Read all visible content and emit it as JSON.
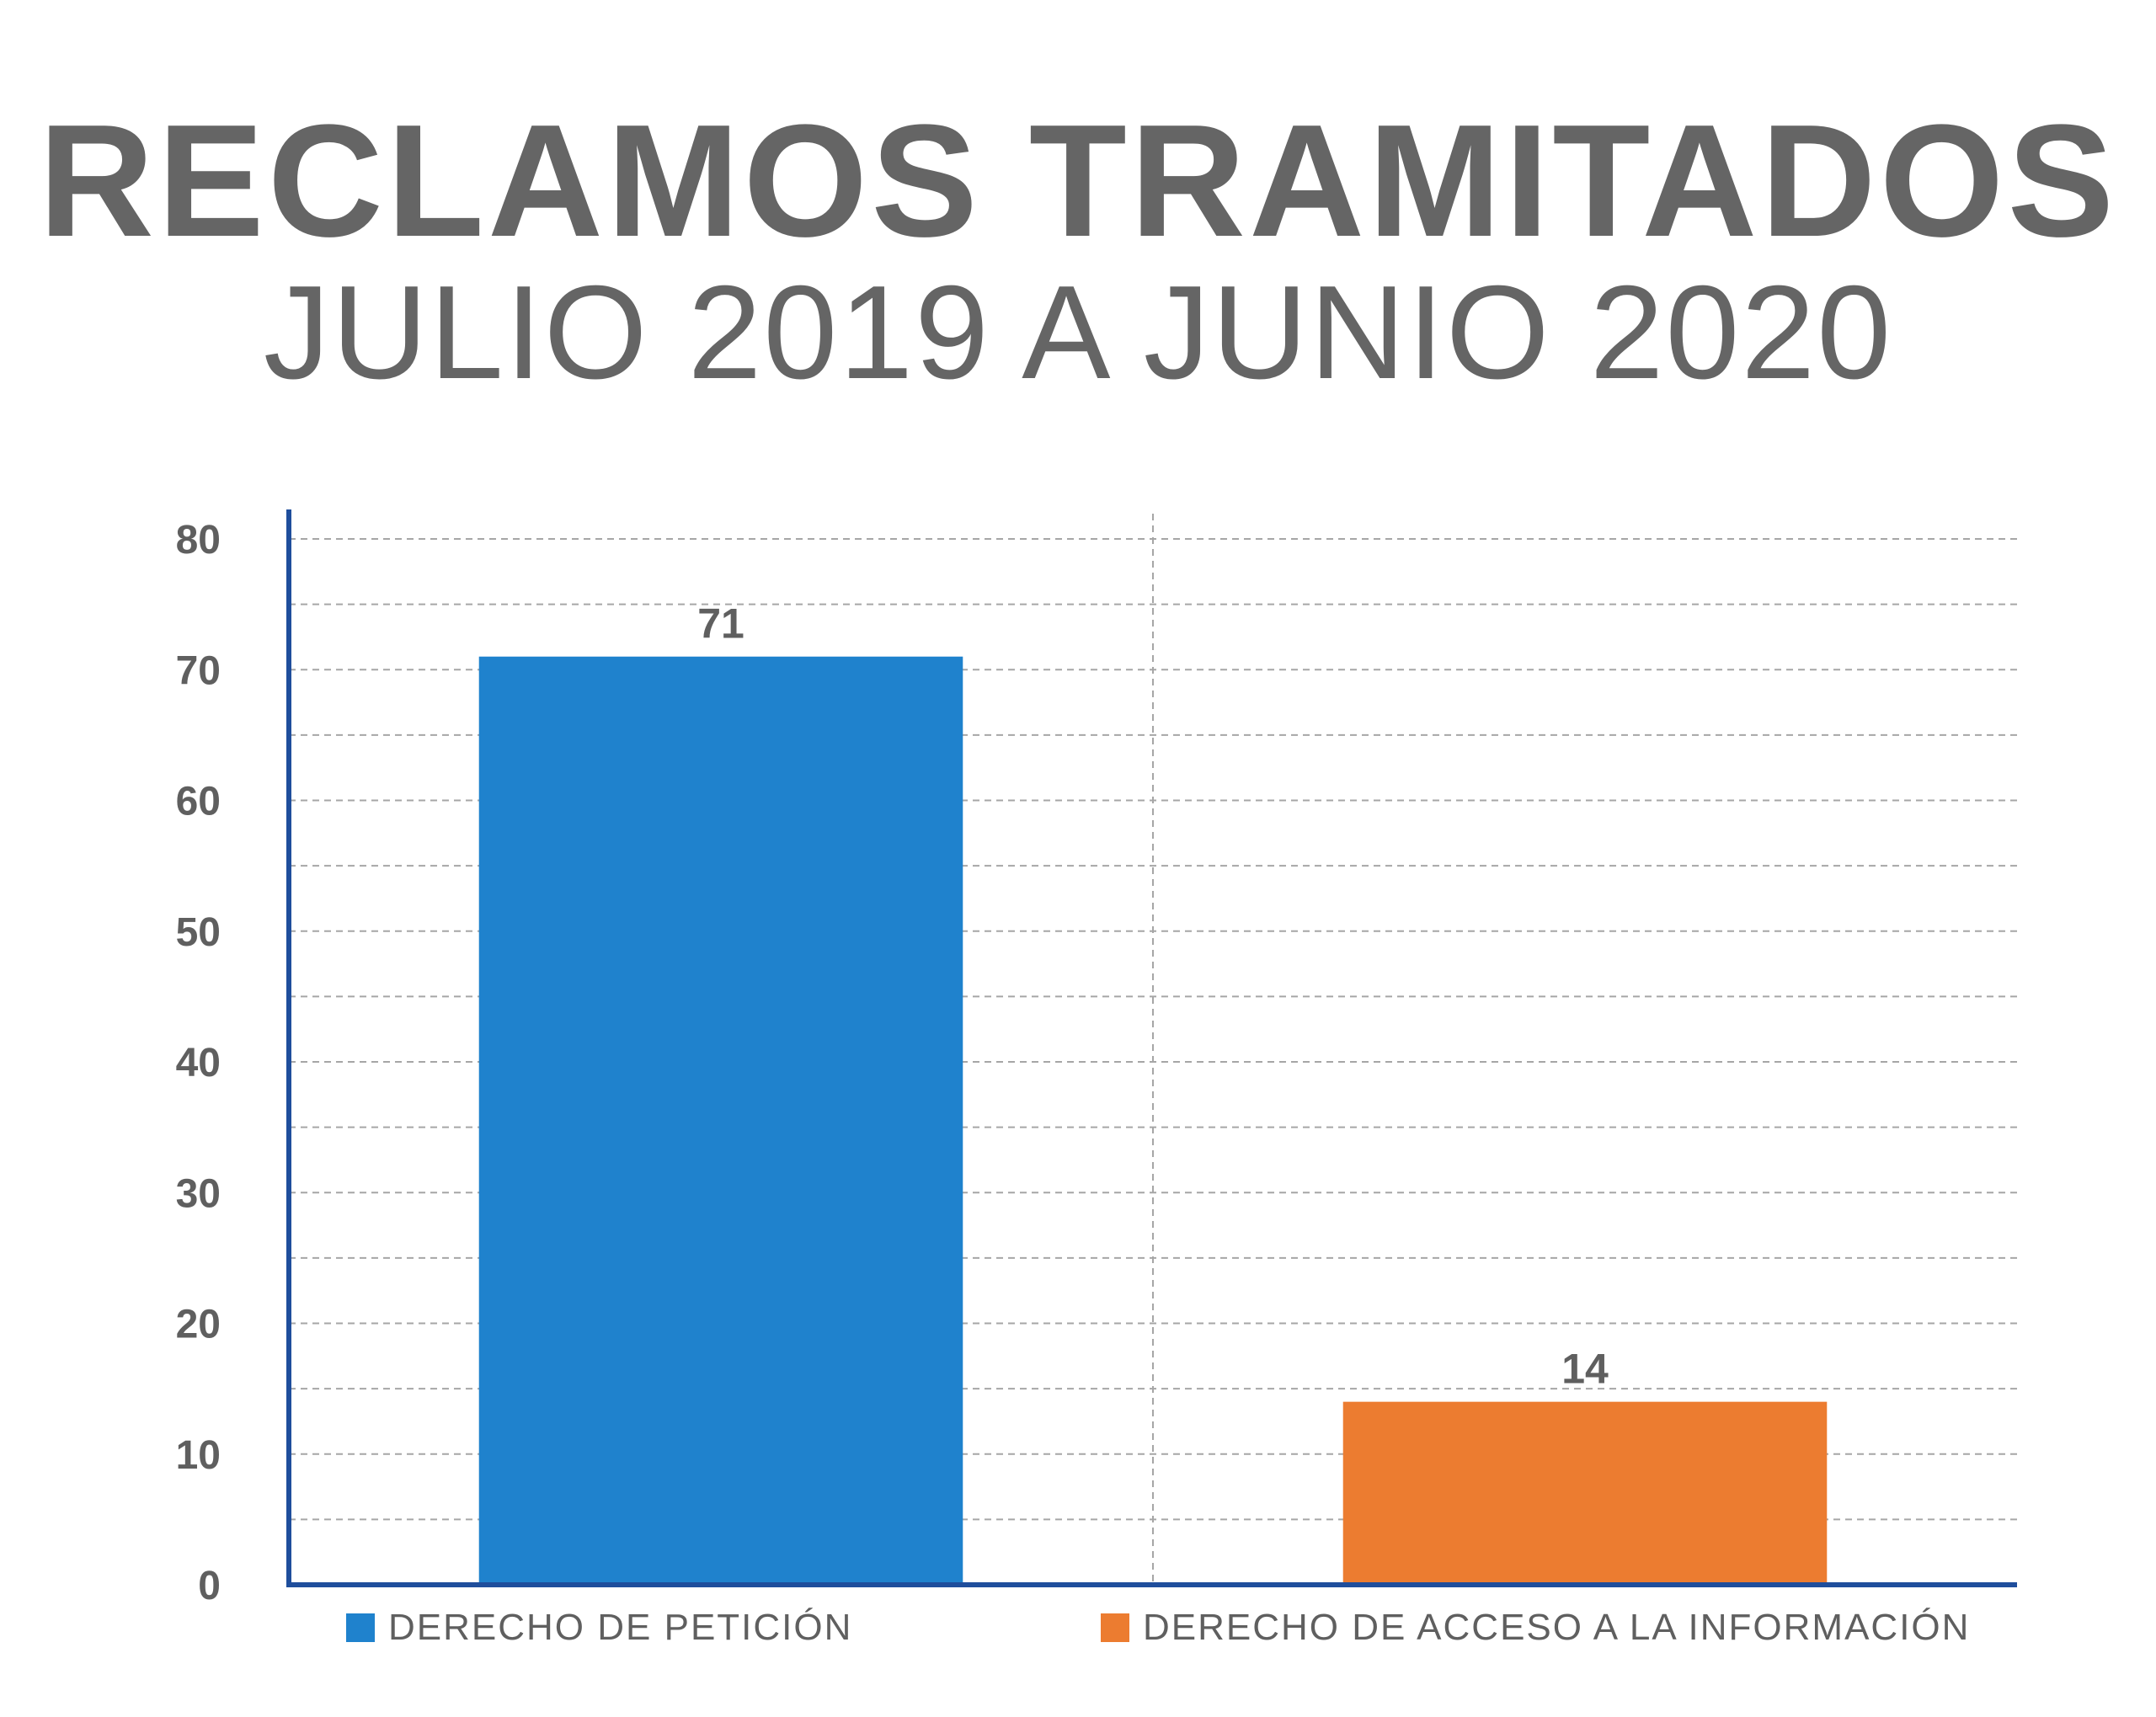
{
  "header": {
    "title": "RECLAMOS TRAMITADOS",
    "subtitle": "JULIO 2019 A JUNIO 2020"
  },
  "chart_data": {
    "type": "bar",
    "title": "RECLAMOS TRAMITADOS",
    "subtitle": "JULIO 2019 A JUNIO 2020",
    "categories": [
      "DERECHO DE PETICIÓN",
      "DERECHO DE ACCESO A LA INFORMACIÓN"
    ],
    "values": [
      71,
      14
    ],
    "data_labels": [
      "71",
      "14"
    ],
    "colors": [
      "#1f82cd",
      "#ec7c30"
    ],
    "axis_color": "#1f4e9c",
    "grid_color": "#a6a6a6",
    "xlabel": "",
    "ylabel": "",
    "ylim": [
      0,
      80
    ],
    "yticks": [
      0,
      10,
      20,
      30,
      40,
      50,
      60,
      70,
      80
    ],
    "ytick_labels": [
      "0",
      "10",
      "20",
      "30",
      "40",
      "50",
      "60",
      "70",
      "80"
    ],
    "grid": true,
    "legend_position": "bottom"
  }
}
